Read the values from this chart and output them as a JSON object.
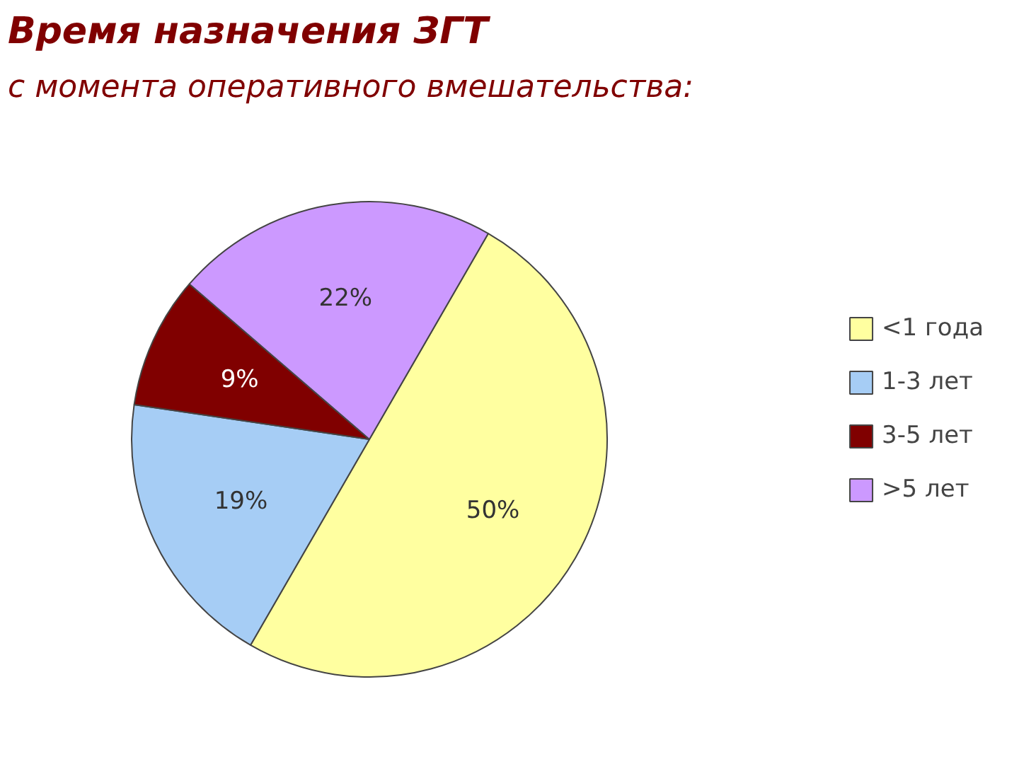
{
  "chart_data": {
    "type": "pie",
    "title": "Время назначения ЗГТ",
    "subtitle": "с момента оперативного вмешательства:",
    "categories": [
      "<1 года",
      "1-3 лет",
      "3-5 лет",
      ">5 лет"
    ],
    "values": [
      50,
      19,
      9,
      22
    ],
    "value_labels": [
      "50%",
      "19%",
      "9%",
      "22%"
    ],
    "colors": [
      "#ffffa0",
      "#a6cdf5",
      "#800000",
      "#cc99ff"
    ],
    "legend": "right"
  }
}
